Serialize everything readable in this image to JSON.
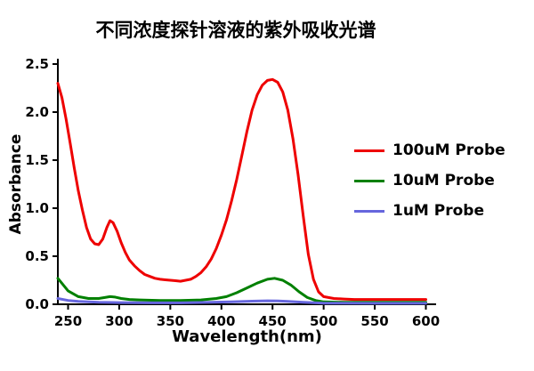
{
  "figure": {
    "background": "#ffffff"
  },
  "chart_data": {
    "type": "line",
    "title": "不同浓度探针溶液的紫外吸收光谱",
    "xlabel": "Wavelength(nm)",
    "ylabel": "Absorbance",
    "xlim": [
      240,
      610
    ],
    "ylim": [
      0,
      2.5
    ],
    "xticks": [
      "250",
      "300",
      "350",
      "400",
      "450",
      "500",
      "550",
      "600"
    ],
    "yticks": [
      "0.0",
      "0.5",
      "1.0",
      "1.5",
      "2.0",
      "2.5"
    ],
    "grid": false,
    "legend_position": "right-center",
    "axis_color": "#000000",
    "series": [
      {
        "name": "100uM Probe",
        "color": "#ee0000",
        "x": [
          240,
          244,
          248,
          252,
          256,
          260,
          264,
          268,
          272,
          276,
          280,
          284,
          288,
          291,
          294,
          298,
          302,
          306,
          310,
          315,
          320,
          325,
          330,
          335,
          340,
          345,
          350,
          355,
          360,
          365,
          370,
          375,
          380,
          385,
          390,
          395,
          400,
          405,
          410,
          415,
          420,
          425,
          430,
          435,
          440,
          445,
          450,
          455,
          460,
          465,
          470,
          475,
          480,
          485,
          490,
          495,
          500,
          510,
          520,
          530,
          540,
          560,
          580,
          600
        ],
        "values": [
          2.3,
          2.15,
          1.93,
          1.68,
          1.42,
          1.18,
          0.98,
          0.8,
          0.68,
          0.63,
          0.62,
          0.68,
          0.8,
          0.87,
          0.85,
          0.76,
          0.64,
          0.54,
          0.46,
          0.4,
          0.35,
          0.31,
          0.29,
          0.27,
          0.26,
          0.255,
          0.25,
          0.245,
          0.24,
          0.25,
          0.26,
          0.29,
          0.33,
          0.39,
          0.47,
          0.58,
          0.72,
          0.88,
          1.08,
          1.3,
          1.55,
          1.8,
          2.02,
          2.18,
          2.28,
          2.33,
          2.34,
          2.31,
          2.21,
          2.02,
          1.72,
          1.35,
          0.92,
          0.52,
          0.26,
          0.13,
          0.08,
          0.06,
          0.055,
          0.05,
          0.05,
          0.05,
          0.05,
          0.05
        ]
      },
      {
        "name": "10uM Probe",
        "color": "#008000",
        "x": [
          240,
          250,
          260,
          270,
          280,
          286,
          291,
          296,
          302,
          310,
          320,
          340,
          360,
          380,
          395,
          405,
          415,
          425,
          435,
          445,
          452,
          460,
          468,
          476,
          484,
          492,
          500,
          520,
          550,
          600
        ],
        "values": [
          0.27,
          0.14,
          0.08,
          0.06,
          0.06,
          0.07,
          0.08,
          0.075,
          0.06,
          0.05,
          0.045,
          0.04,
          0.04,
          0.045,
          0.06,
          0.08,
          0.12,
          0.17,
          0.22,
          0.26,
          0.27,
          0.25,
          0.2,
          0.13,
          0.07,
          0.04,
          0.025,
          0.02,
          0.02,
          0.02
        ]
      },
      {
        "name": "1uM Probe",
        "color": "#6666dd",
        "x": [
          240,
          250,
          260,
          280,
          300,
          330,
          360,
          390,
          410,
          430,
          445,
          455,
          465,
          480,
          500,
          550,
          600
        ],
        "values": [
          0.06,
          0.04,
          0.03,
          0.02,
          0.018,
          0.015,
          0.015,
          0.02,
          0.025,
          0.032,
          0.036,
          0.035,
          0.03,
          0.02,
          0.012,
          0.01,
          0.01
        ]
      }
    ]
  }
}
